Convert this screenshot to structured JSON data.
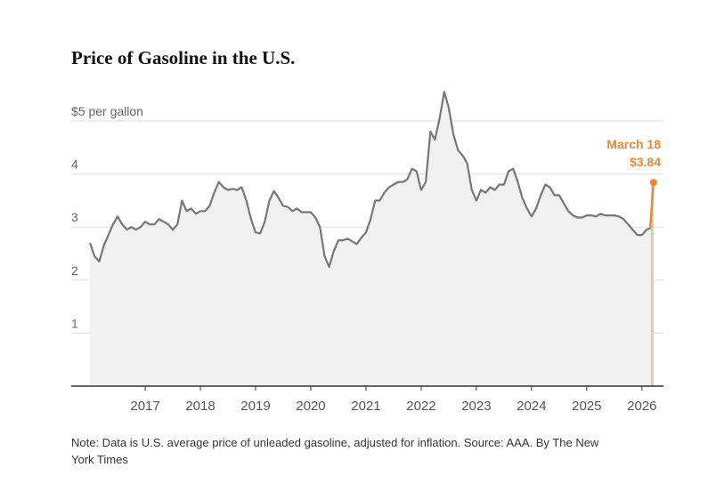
{
  "chart_data": {
    "type": "line",
    "title": "Price of Gasoline in the U.S.",
    "note": "Note: Data is U.S. average price of unleaded gasoline, adjusted for inflation.  Source: AAA.  By The New York Times",
    "x": [
      2016,
      2016.083,
      2016.167,
      2016.25,
      2016.333,
      2016.417,
      2016.5,
      2016.583,
      2016.667,
      2016.75,
      2016.833,
      2016.917,
      2017,
      2017.083,
      2017.167,
      2017.25,
      2017.333,
      2017.417,
      2017.5,
      2017.583,
      2017.667,
      2017.75,
      2017.833,
      2017.917,
      2018,
      2018.083,
      2018.167,
      2018.25,
      2018.333,
      2018.417,
      2018.5,
      2018.583,
      2018.667,
      2018.75,
      2018.833,
      2018.917,
      2019,
      2019.083,
      2019.167,
      2019.25,
      2019.333,
      2019.417,
      2019.5,
      2019.583,
      2019.667,
      2019.75,
      2019.833,
      2019.917,
      2020,
      2020.083,
      2020.167,
      2020.25,
      2020.333,
      2020.417,
      2020.5,
      2020.583,
      2020.667,
      2020.75,
      2020.833,
      2020.917,
      2021,
      2021.083,
      2021.167,
      2021.25,
      2021.333,
      2021.417,
      2021.5,
      2021.583,
      2021.667,
      2021.75,
      2021.833,
      2021.917,
      2022,
      2022.083,
      2022.167,
      2022.25,
      2022.333,
      2022.417,
      2022.5,
      2022.583,
      2022.667,
      2022.75,
      2022.833,
      2022.917,
      2023,
      2023.083,
      2023.167,
      2023.25,
      2023.333,
      2023.417,
      2023.5,
      2023.583,
      2023.667,
      2023.75,
      2023.833,
      2023.917,
      2024,
      2024.083,
      2024.167,
      2024.25,
      2024.333,
      2024.417,
      2024.5,
      2024.583,
      2024.667,
      2024.75,
      2024.833,
      2024.917,
      2025,
      2025.083,
      2025.167,
      2025.25,
      2025.333,
      2025.417,
      2025.5,
      2025.583,
      2025.667,
      2025.75,
      2025.833,
      2025.917,
      2026,
      2026.083,
      2026.15,
      2026.21
    ],
    "series": [
      {
        "name": "Price",
        "color": "#777777",
        "values": [
          2.7,
          2.45,
          2.35,
          2.65,
          2.85,
          3.05,
          3.2,
          3.05,
          2.95,
          3.0,
          2.95,
          3.0,
          3.1,
          3.05,
          3.05,
          3.15,
          3.1,
          3.05,
          2.95,
          3.05,
          3.5,
          3.3,
          3.35,
          3.25,
          3.3,
          3.3,
          3.4,
          3.65,
          3.85,
          3.75,
          3.7,
          3.72,
          3.7,
          3.75,
          3.5,
          3.15,
          2.9,
          2.88,
          3.1,
          3.5,
          3.68,
          3.55,
          3.4,
          3.38,
          3.3,
          3.35,
          3.28,
          3.28,
          3.28,
          3.18,
          3.0,
          2.45,
          2.25,
          2.55,
          2.75,
          2.75,
          2.78,
          2.73,
          2.68,
          2.8,
          2.9,
          3.15,
          3.5,
          3.5,
          3.65,
          3.75,
          3.8,
          3.85,
          3.85,
          3.9,
          4.1,
          4.05,
          3.7,
          3.85,
          4.8,
          4.65,
          5.05,
          5.55,
          5.25,
          4.75,
          4.45,
          4.35,
          4.2,
          3.7,
          3.5,
          3.7,
          3.65,
          3.75,
          3.7,
          3.8,
          3.8,
          4.05,
          4.1,
          3.85,
          3.55,
          3.35,
          3.2,
          3.35,
          3.6,
          3.8,
          3.75,
          3.6,
          3.6,
          3.45,
          3.3,
          3.22,
          3.18,
          3.18,
          3.22,
          3.22,
          3.2,
          3.25,
          3.22,
          3.22,
          3.22,
          3.2,
          3.15,
          3.05,
          2.95,
          2.85,
          2.85,
          2.95,
          2.98,
          3.84
        ]
      }
    ],
    "highlight_color": "#e8883a",
    "last_label": "March 18",
    "last_value_label": "$3.84",
    "xlim": [
      2015.66,
      2026.39
    ],
    "xticks": [
      2017,
      2018,
      2019,
      2020,
      2021,
      2022,
      2023,
      2024,
      2025,
      2026
    ],
    "ylim": [
      0,
      5
    ],
    "yticks": [
      1,
      2,
      3,
      4,
      {
        "value": 5,
        "label": "$5 per gallon"
      }
    ],
    "grid": true
  }
}
